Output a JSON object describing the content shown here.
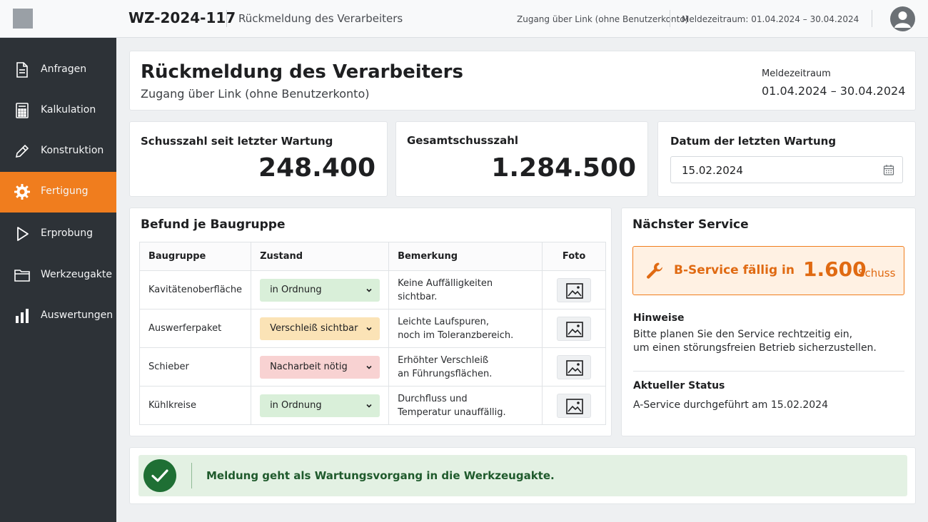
{
  "topbar": {
    "id": "WZ-2024-117",
    "title": "Rückmeldung des Verarbeiters",
    "access": "Zugang über Link (ohne Benutzerkonto)",
    "period": "Meldezeitraum: 01.04.2024 – 30.04.2024"
  },
  "sidebar": {
    "items": [
      {
        "label": "Anfragen",
        "icon": "document-icon"
      },
      {
        "label": "Kalkulation",
        "icon": "calculator-icon"
      },
      {
        "label": "Konstruktion",
        "icon": "pencil-icon"
      },
      {
        "label": "Fertigung",
        "icon": "gear-icon",
        "active": true
      },
      {
        "label": "Erprobung",
        "icon": "play-icon"
      },
      {
        "label": "Werkzeugakte",
        "icon": "folder-icon"
      },
      {
        "label": "Auswertungen",
        "icon": "bar-chart-icon"
      }
    ]
  },
  "header": {
    "title": "Rückmeldung des Verarbeiters",
    "subtitle": "Zugang über Link (ohne Benutzerkonto)",
    "period_label": "Meldezeitraum",
    "period_value": "01.04.2024 – 30.04.2024"
  },
  "stats": {
    "shots_since_label": "Schusszahl seit letzter Wartung",
    "shots_since_value": "248.400",
    "total_label": "Gesamtschusszahl",
    "total_value": "1.284.500",
    "last_service_label": "Datum der letzten Wartung",
    "last_service_value": "15.02.2024"
  },
  "findings": {
    "title": "Befund je Baugruppe",
    "columns": [
      "Baugruppe",
      "Zustand",
      "Bemerkung",
      "Foto"
    ],
    "rows": [
      {
        "group": "Kavitätenoberfläche",
        "status": "in Ordnung",
        "status_level": "ok",
        "remark_1": "Keine Auffälligkeiten",
        "remark_2": "sichtbar."
      },
      {
        "group": "Auswerferpaket",
        "status": "Verschleiß sichtbar",
        "status_level": "warn",
        "remark_1": "Leichte Laufspuren,",
        "remark_2": "noch im Toleranzbereich."
      },
      {
        "group": "Schieber",
        "status": "Nacharbeit nötig",
        "status_level": "bad",
        "remark_1": "Erhöhter Verschleiß",
        "remark_2": "an Führungsflächen."
      },
      {
        "group": "Kühlkreise",
        "status": "in Ordnung",
        "status_level": "ok",
        "remark_1": "Durchfluss und",
        "remark_2": "Temperatur unauffällig."
      }
    ]
  },
  "next_service": {
    "title": "Nächster Service",
    "due_label": "B-Service fällig in",
    "due_value": "1.600",
    "due_unit": "Schuss",
    "hints_label": "Hinweise",
    "hints_line1": "Bitte planen Sie den Service rechtzeitig ein,",
    "hints_line2": "um einen störungsfreien Betrieb sicherzustellen.",
    "status_label": "Aktueller Status",
    "status_text": "A-Service durchgeführt am 15.02.2024"
  },
  "banner": {
    "text": "Meldung geht als Wartungsvorgang in die Werkzeugakte."
  },
  "colors": {
    "accent": "#f07d1e",
    "sidebar": "#2d3237",
    "ok": "#d9efd9",
    "warn": "#fbe3b6",
    "bad": "#f8d2d2",
    "success": "#1f6f34"
  }
}
